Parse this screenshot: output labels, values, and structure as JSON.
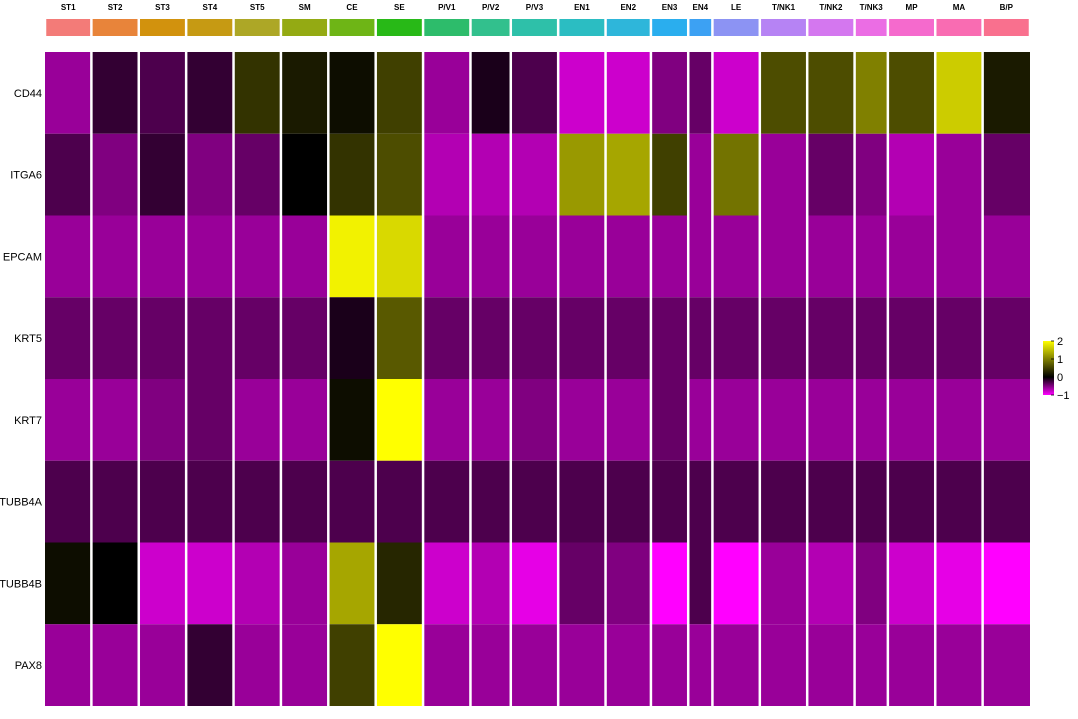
{
  "chart_data": {
    "type": "heatmap",
    "title": "",
    "xlabel": "",
    "ylabel": "",
    "clusters": [
      {
        "label": "ST1",
        "color": "#F37B78"
      },
      {
        "label": "ST2",
        "color": "#E8843A"
      },
      {
        "label": "ST3",
        "color": "#D2920D"
      },
      {
        "label": "ST4",
        "color": "#C69A13"
      },
      {
        "label": "ST5",
        "color": "#ADA726"
      },
      {
        "label": "SM",
        "color": "#94AA13"
      },
      {
        "label": "CE",
        "color": "#6EB516"
      },
      {
        "label": "SE",
        "color": "#28B917"
      },
      {
        "label": "P/V1",
        "color": "#2DBC6B"
      },
      {
        "label": "P/V2",
        "color": "#32C08D"
      },
      {
        "label": "P/V3",
        "color": "#2EC0A9"
      },
      {
        "label": "EN1",
        "color": "#2BBDC2"
      },
      {
        "label": "EN2",
        "color": "#2EB6DA"
      },
      {
        "label": "EN3",
        "color": "#2AAEEE"
      },
      {
        "label": "EN4",
        "color": "#3CA1F3"
      },
      {
        "label": "LE",
        "color": "#8C93F3"
      },
      {
        "label": "T/NK1",
        "color": "#B683F4"
      },
      {
        "label": "T/NK2",
        "color": "#D477EF"
      },
      {
        "label": "T/NK3",
        "color": "#EB6DE4"
      },
      {
        "label": "MP",
        "color": "#F56ACD"
      },
      {
        "label": "MA",
        "color": "#F96CB2"
      },
      {
        "label": "B/P",
        "color": "#F9708E"
      }
    ],
    "genes": [
      "CD44",
      "ITGA6",
      "EPCAM",
      "KRT5",
      "KRT7",
      "TUBB4A",
      "TUBB4B",
      "PAX8"
    ],
    "values": [
      [
        -0.6,
        -0.2,
        -0.3,
        -0.2,
        0.4,
        0.2,
        0.1,
        0.5,
        -0.6,
        -0.1,
        -0.3,
        -0.8,
        -0.8,
        -0.5,
        -0.4,
        -0.8,
        0.6,
        0.6,
        1.0,
        0.6,
        1.6,
        0.2
      ],
      [
        -0.3,
        -0.5,
        -0.2,
        -0.5,
        -0.4,
        0.0,
        0.4,
        0.6,
        -0.7,
        -0.7,
        -0.7,
        1.2,
        1.3,
        0.5,
        -0.6,
        0.9,
        -0.6,
        -0.4,
        -0.5,
        -0.7,
        -0.6,
        -0.4
      ],
      [
        -0.6,
        -0.6,
        -0.6,
        -0.6,
        -0.6,
        -0.6,
        1.9,
        1.7,
        -0.6,
        -0.6,
        -0.6,
        -0.6,
        -0.6,
        -0.6,
        -0.6,
        -0.6,
        -0.6,
        -0.6,
        -0.6,
        -0.6,
        -0.6,
        -0.6
      ],
      [
        -0.4,
        -0.4,
        -0.4,
        -0.4,
        -0.4,
        -0.4,
        -0.1,
        0.7,
        -0.4,
        -0.4,
        -0.4,
        -0.4,
        -0.4,
        -0.4,
        -0.4,
        -0.4,
        -0.4,
        -0.4,
        -0.4,
        -0.4,
        -0.4,
        -0.4
      ],
      [
        -0.6,
        -0.6,
        -0.5,
        -0.4,
        -0.6,
        -0.6,
        0.1,
        2.0,
        -0.6,
        -0.6,
        -0.5,
        -0.6,
        -0.6,
        -0.4,
        -0.6,
        -0.6,
        -0.6,
        -0.6,
        -0.6,
        -0.6,
        -0.6,
        -0.6
      ],
      [
        -0.3,
        -0.3,
        -0.3,
        -0.3,
        -0.3,
        -0.3,
        -0.3,
        -0.3,
        -0.3,
        -0.3,
        -0.3,
        -0.3,
        -0.3,
        -0.3,
        -0.3,
        -0.3,
        -0.3,
        -0.3,
        -0.3,
        -0.3,
        -0.3,
        -0.3
      ],
      [
        0.1,
        0.0,
        -0.8,
        -0.8,
        -0.7,
        -0.6,
        1.3,
        0.3,
        -0.8,
        -0.7,
        -0.9,
        -0.4,
        -0.5,
        -1.0,
        -0.3,
        -1.0,
        -0.6,
        -0.7,
        -0.5,
        -0.8,
        -0.9,
        -1.0
      ],
      [
        -0.6,
        -0.6,
        -0.6,
        -0.2,
        -0.6,
        -0.6,
        0.5,
        2.0,
        -0.6,
        -0.6,
        -0.6,
        -0.6,
        -0.6,
        -0.6,
        -0.6,
        -0.6,
        -0.6,
        -0.6,
        -0.6,
        -0.6,
        -0.6,
        -0.6
      ]
    ],
    "color_scale": {
      "min": -1,
      "max": 2,
      "stops": [
        {
          "value": -1,
          "color": "#FF00FF"
        },
        {
          "value": 0,
          "color": "#000000"
        },
        {
          "value": 2,
          "color": "#FFFF00"
        }
      ],
      "ticks": [
        "2",
        "1",
        "0",
        "−1"
      ]
    },
    "legend_placement": "right"
  }
}
